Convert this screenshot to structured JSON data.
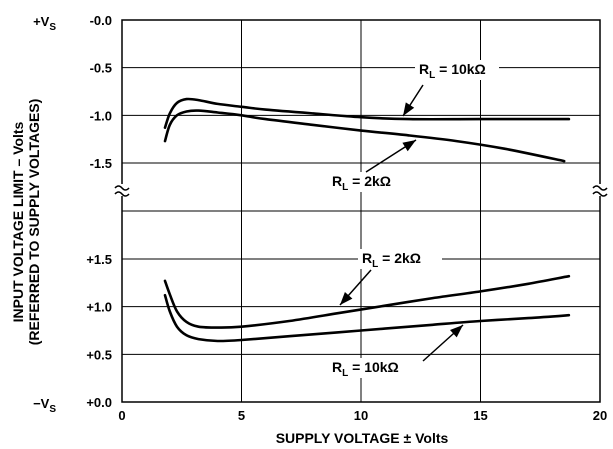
{
  "chart_data": [
    {
      "panel": "upper",
      "type": "line",
      "xlabel": "SUPPLY VOLTAGE ± Volts",
      "ylabel": "INPUT VOLTAGE LIMIT – Volts",
      "ylabel2": "(REFERRED TO SUPPLY VOLTAGES)",
      "xlim": [
        0,
        20
      ],
      "ylim": [
        -1.5,
        0
      ],
      "xticks": [
        "0",
        "5",
        "10",
        "15",
        "20"
      ],
      "yticks": [
        "-0.0",
        "-0.5",
        "-1.0",
        "-1.5"
      ],
      "yref_label": {
        "main": "+V",
        "sub": "S"
      },
      "grid": true,
      "series": [
        {
          "name": "R_L = 10kΩ",
          "x": [
            1.8,
            2.0,
            2.3,
            2.7,
            3.2,
            4,
            5,
            6,
            8,
            10,
            12,
            15,
            18.7
          ],
          "y": [
            -1.13,
            -0.98,
            -0.87,
            -0.83,
            -0.84,
            -0.88,
            -0.91,
            -0.94,
            -0.98,
            -1.02,
            -1.04,
            -1.04,
            -1.04
          ]
        },
        {
          "name": "R_L = 2kΩ",
          "x": [
            1.8,
            2.0,
            2.3,
            2.7,
            3.2,
            4,
            5,
            6,
            8,
            10,
            12,
            14,
            16,
            18.5
          ],
          "y": [
            -1.27,
            -1.1,
            -1.0,
            -0.96,
            -0.95,
            -0.97,
            -1.0,
            -1.04,
            -1.1,
            -1.16,
            -1.21,
            -1.27,
            -1.35,
            -1.48
          ]
        }
      ],
      "annotations": [
        {
          "main": "R",
          "sub": "L",
          "rest": " = 10kΩ"
        },
        {
          "main": "R",
          "sub": "L",
          "rest": " = 2kΩ"
        }
      ]
    },
    {
      "panel": "lower",
      "type": "line",
      "xlim": [
        0,
        20
      ],
      "ylim": [
        0,
        1.5
      ],
      "yticks": [
        "+0.0",
        "+0.5",
        "+1.0",
        "+1.5"
      ],
      "yref_label": {
        "main": "−V",
        "sub": "S"
      },
      "grid": true,
      "series": [
        {
          "name": "R_L = 2kΩ",
          "x": [
            1.8,
            2.0,
            2.3,
            2.7,
            3.2,
            4,
            5,
            7,
            9,
            11,
            13,
            15,
            17,
            18.7
          ],
          "y": [
            1.27,
            1.13,
            0.95,
            0.84,
            0.79,
            0.78,
            0.79,
            0.85,
            0.93,
            1.01,
            1.09,
            1.16,
            1.24,
            1.32
          ]
        },
        {
          "name": "R_L = 10kΩ",
          "x": [
            1.8,
            2.0,
            2.3,
            2.7,
            3.2,
            4,
            5,
            7,
            9,
            11,
            13,
            15,
            17,
            18.7
          ],
          "y": [
            1.12,
            0.95,
            0.79,
            0.7,
            0.66,
            0.64,
            0.65,
            0.69,
            0.73,
            0.77,
            0.81,
            0.85,
            0.88,
            0.91
          ]
        }
      ],
      "annotations": [
        {
          "main": "R",
          "sub": "L",
          "rest": " = 2kΩ"
        },
        {
          "main": "R",
          "sub": "L",
          "rest": " = 10kΩ"
        }
      ]
    }
  ]
}
